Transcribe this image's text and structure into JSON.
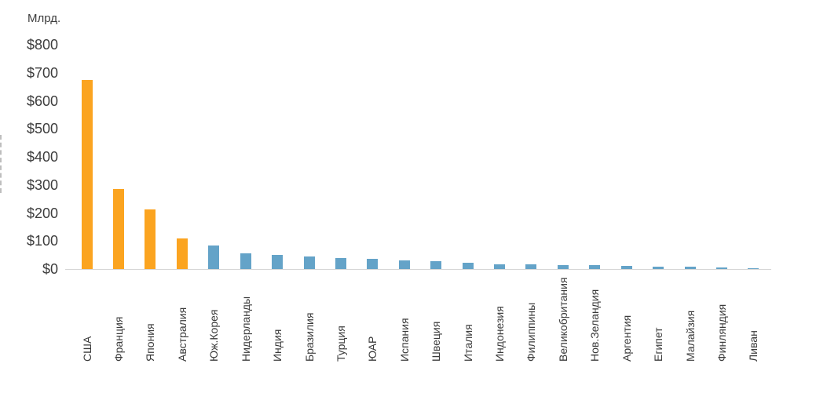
{
  "chart_data": {
    "type": "bar",
    "unit_label": "Млрд.",
    "categories": [
      "США",
      "Франция",
      "Япония",
      "Австралия",
      "Юж.Корея",
      "Нидерланды",
      "Индия",
      "Бразилия",
      "Турция",
      "ЮАР",
      "Испания",
      "Швеция",
      "Италия",
      "Индонезия",
      "Филиппины",
      "Великобритания",
      "Нов.Зеландия",
      "Аргентия",
      "Египет",
      "Малайзия",
      "Финляндия",
      "Ливан"
    ],
    "values": [
      675,
      285,
      212,
      109,
      83,
      55,
      50,
      45,
      40,
      37,
      30,
      29,
      23,
      17,
      16,
      15,
      13,
      10,
      8,
      7,
      5,
      1
    ],
    "highlight_count": 4,
    "y_ticks": [
      {
        "label": "$800",
        "value": 800
      },
      {
        "label": "$700",
        "value": 700
      },
      {
        "label": "$600",
        "value": 600
      },
      {
        "label": "$500",
        "value": 500
      },
      {
        "label": "$400",
        "value": 400
      },
      {
        "label": "$300",
        "value": 300
      },
      {
        "label": "$200",
        "value": 200
      },
      {
        "label": "$100",
        "value": 100
      },
      {
        "label": "$0",
        "value": 0
      }
    ],
    "ylim": [
      0,
      800
    ],
    "grid": false,
    "legend": "none",
    "colors": {
      "highlight_bar": "#fba420",
      "default_bar": "#64a3c8",
      "axis_line": "#d6d6d6",
      "text": "#3d3d3d"
    }
  }
}
